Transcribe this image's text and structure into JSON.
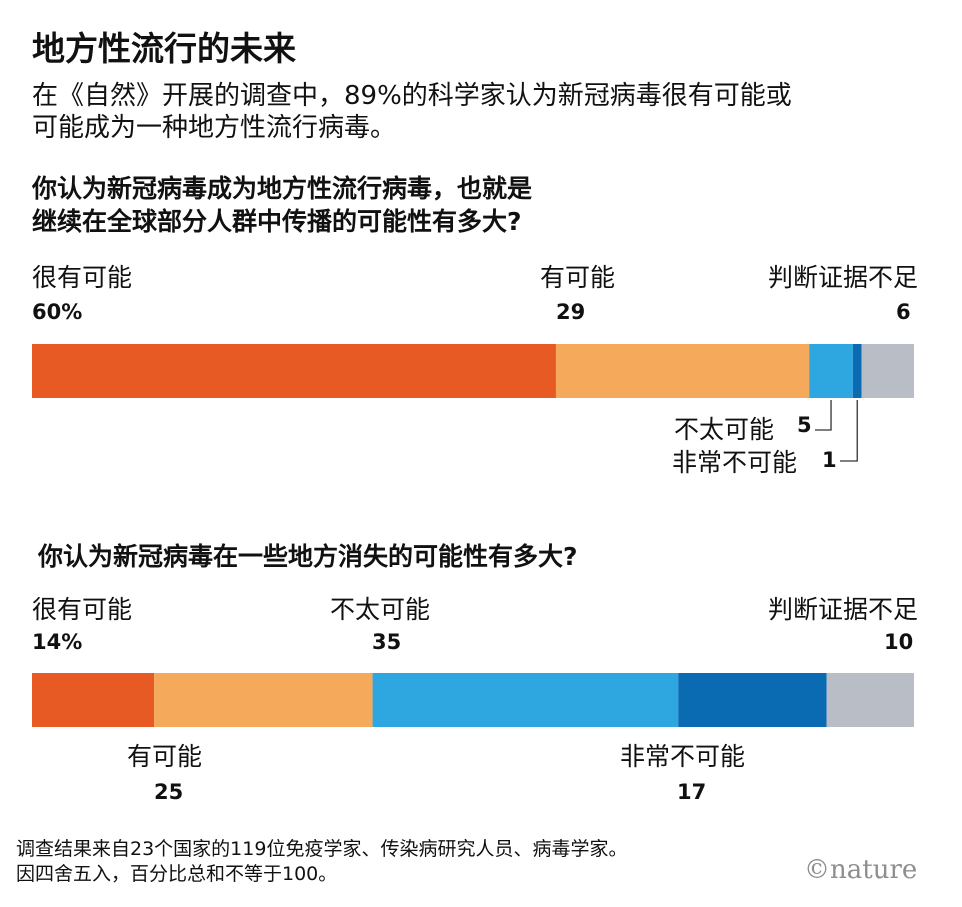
{
  "title": "地方性流行的未来",
  "subtitle_lines": [
    "在《自然》开展的调查中，89%的科学家认为新冠病毒很有可能或",
    "可能成为一种地方性流行病毒。"
  ],
  "colors": {
    "very_likely": "#e85a24",
    "likely": "#f5a95a",
    "unlikely": "#2ea6e0",
    "very_unlikely": "#0a6ab2",
    "unknown": "#b9bec6"
  },
  "chart_data": [
    {
      "type": "bar",
      "stacked": true,
      "orientation": "horizontal",
      "title_lines": [
        "你认为新冠病毒成为地方性流行病毒，也就是",
        "继续在全球部分人群中传播的可能性有多大?"
      ],
      "categories": [
        "很有可能",
        "有可能",
        "不太可能",
        "非常不可能",
        "判断证据不足"
      ],
      "values": [
        60,
        29,
        5,
        1,
        6
      ],
      "value_labels": [
        "60%",
        "29",
        "5",
        "1",
        "6"
      ]
    },
    {
      "type": "bar",
      "stacked": true,
      "orientation": "horizontal",
      "title_lines": [
        "你认为新冠病毒在一些地方消失的可能性有多大?"
      ],
      "categories": [
        "很有可能",
        "有可能",
        "不太可能",
        "非常不可能",
        "判断证据不足"
      ],
      "values": [
        14,
        25,
        35,
        17,
        10
      ],
      "value_labels": [
        "14%",
        "25",
        "35",
        "17",
        "10"
      ]
    }
  ],
  "note_lines": [
    "调查结果来自23个国家的119位免疫学家、传染病研究人员、病毒学家。",
    "因四舍五入，百分比总和不等于100。"
  ],
  "logo": "©nature"
}
